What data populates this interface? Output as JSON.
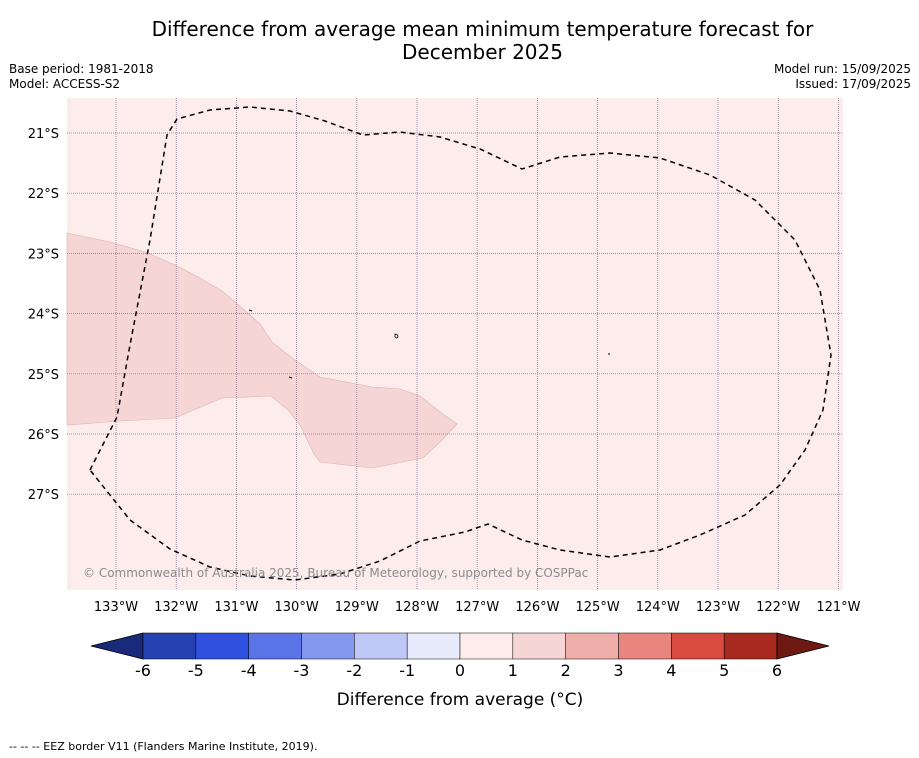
{
  "title_line1": "Difference from average mean minimum temperature forecast for",
  "title_line2": "December 2025",
  "base_period": "Base period: 1981-2018",
  "model": "Model: ACCESS-S2",
  "model_run": "Model run: 15/09/2025",
  "issued": "Issued: 17/09/2025",
  "copyright": "© Commonwealth of Australia 2025, Bureau of Meteorology, supported by COSPPac",
  "footer_legend": "--  --  -- EEZ border V11 (Flanders Marine Institute, 2019).",
  "lat_labels": [
    "21°S",
    "22°S",
    "23°S",
    "24°S",
    "25°S",
    "26°S",
    "27°S"
  ],
  "lon_labels": [
    "133°W",
    "132°W",
    "131°W",
    "130°W",
    "129°W",
    "128°W",
    "127°W",
    "126°W",
    "125°W",
    "124°W",
    "123°W",
    "122°W",
    "121°W"
  ],
  "colorbar": {
    "title": "Difference from average (°C)",
    "ticks": [
      "-6",
      "-5",
      "-4",
      "-3",
      "-2",
      "-1",
      "0",
      "1",
      "2",
      "3",
      "4",
      "5",
      "6"
    ],
    "colors": [
      "#2541b2",
      "#3050e0",
      "#5a73e6",
      "#8497ee",
      "#bfc7f6",
      "#e8ebfb",
      "#fcecec",
      "#f6d6d4",
      "#efaea9",
      "#e8857f",
      "#d94b40",
      "#a8291f"
    ],
    "under_color": "#1a2a7a",
    "over_color": "#6e1a12"
  },
  "colors": {
    "background_class": "#fcecec",
    "highlight_class": "#f6d6d4"
  }
}
